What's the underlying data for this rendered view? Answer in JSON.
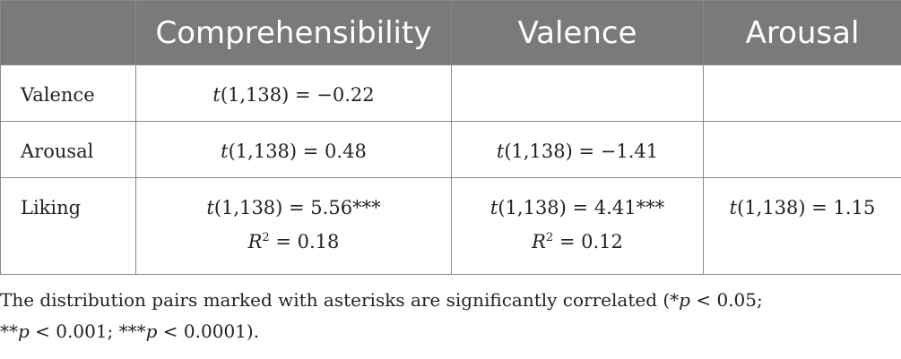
{
  "table": {
    "headers": [
      "",
      "Comprehensibility",
      "Valence",
      "Arousal"
    ],
    "rows": [
      {
        "label": "Valence",
        "cells": [
          {
            "t": "t",
            "text": "(1,138) = −0.22",
            "r2": ""
          },
          {
            "t": "",
            "text": "",
            "r2": ""
          },
          {
            "t": "",
            "text": "",
            "r2": ""
          }
        ]
      },
      {
        "label": "Arousal",
        "cells": [
          {
            "t": "t",
            "text": "(1,138) = 0.48",
            "r2": ""
          },
          {
            "t": "t",
            "text": "(1,138) = −1.41",
            "r2": ""
          },
          {
            "t": "",
            "text": "",
            "r2": ""
          }
        ]
      },
      {
        "label": "Liking",
        "cells": [
          {
            "t": "t",
            "text": "(1,138) = 5.56***",
            "r2_sym": "R",
            "r2_sup": "2",
            "r2": " = 0.18"
          },
          {
            "t": "t",
            "text": "(1,138) = 4.41***",
            "r2_sym": "R",
            "r2_sup": "2",
            "r2": " = 0.12"
          },
          {
            "t": "t",
            "text": "(1,138) = 1.15",
            "r2": ""
          }
        ]
      }
    ]
  },
  "note": {
    "prefix": "The distribution pairs marked with asterisks are significantly correlated (*",
    "p1": "p",
    "v1": " < 0.05;",
    "s2": "**",
    "p2": "p",
    "v2": " < 0.001; ***",
    "p3": "p",
    "v3": " < 0.0001)."
  }
}
